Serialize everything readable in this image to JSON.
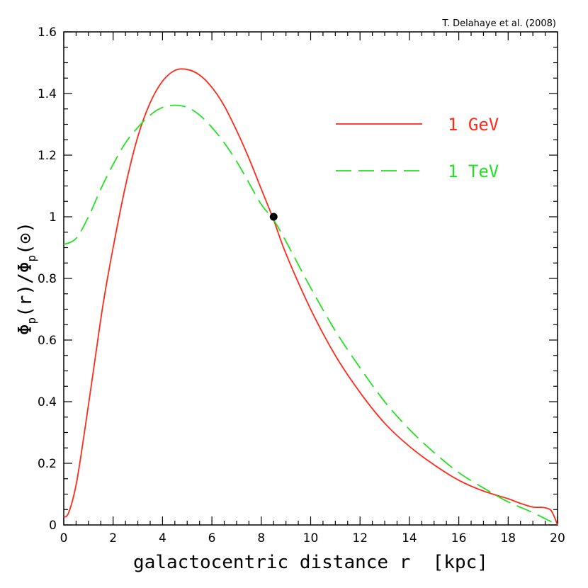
{
  "chart_data": {
    "type": "line",
    "title": "",
    "credit": "T. Delahaye et al. (2008)",
    "xlabel": "galactocentric distance r  [kpc]",
    "ylabel": {
      "base": "Φ",
      "sub1": "p",
      "mid1": "(r)/",
      "base2": "Φ",
      "sub2": "p",
      "mid2": "(⊙)"
    },
    "xlim": [
      0,
      20
    ],
    "ylim": [
      0,
      1.6
    ],
    "x_major_ticks": [
      0,
      2,
      4,
      6,
      8,
      10,
      12,
      14,
      16,
      18,
      20
    ],
    "x_tick_labels": [
      "0",
      "2",
      "4",
      "6",
      "8",
      "10",
      "12",
      "14",
      "16",
      "18",
      "20"
    ],
    "y_major_ticks": [
      0,
      0.2,
      0.4,
      0.6,
      0.8,
      1.0,
      1.2,
      1.4,
      1.6
    ],
    "y_tick_labels": [
      "0",
      "0.2",
      "0.4",
      "0.6",
      "0.8",
      "1",
      "1.2",
      "1.4",
      "1.6"
    ],
    "series": [
      {
        "name": "1 GeV",
        "color": "#ff2a1a",
        "style": "solid",
        "x": [
          0,
          0.2,
          0.5,
          0.8,
          1.2,
          1.6,
          2.0,
          2.5,
          3.0,
          3.5,
          4.0,
          4.5,
          5.0,
          5.5,
          6.0,
          6.5,
          7.0,
          7.5,
          8.0,
          8.5,
          9.0,
          10.0,
          11.0,
          12.0,
          13.0,
          14.0,
          15.0,
          16.0,
          17.0,
          18.0,
          18.5,
          19.0,
          19.4,
          19.7,
          19.85,
          20.0
        ],
        "y": [
          0.025,
          0.04,
          0.13,
          0.28,
          0.5,
          0.72,
          0.9,
          1.1,
          1.26,
          1.37,
          1.44,
          1.475,
          1.478,
          1.46,
          1.42,
          1.36,
          1.28,
          1.19,
          1.09,
          0.99,
          0.88,
          0.7,
          0.55,
          0.43,
          0.33,
          0.255,
          0.195,
          0.145,
          0.11,
          0.085,
          0.07,
          0.058,
          0.057,
          0.05,
          0.03,
          0.0
        ]
      },
      {
        "name": "1 TeV",
        "color": "#22e022",
        "style": "dashed",
        "x": [
          0,
          0.5,
          1.0,
          1.5,
          2.0,
          2.5,
          3.0,
          3.5,
          4.0,
          4.5,
          5.0,
          5.5,
          6.0,
          6.5,
          7.0,
          7.5,
          8.0,
          8.5,
          9.0,
          10.0,
          11.0,
          12.0,
          13.0,
          14.0,
          15.0,
          16.0,
          17.0,
          18.0,
          19.0,
          20.0
        ],
        "y": [
          0.91,
          0.93,
          1.0,
          1.09,
          1.17,
          1.24,
          1.29,
          1.33,
          1.355,
          1.362,
          1.355,
          1.33,
          1.29,
          1.24,
          1.18,
          1.11,
          1.04,
          0.99,
          0.92,
          0.77,
          0.63,
          0.51,
          0.4,
          0.31,
          0.235,
          0.17,
          0.12,
          0.075,
          0.04,
          0.0
        ]
      }
    ],
    "reference_point": {
      "x": 8.5,
      "y": 1.0,
      "color": "#000000"
    },
    "legend": {
      "position": "top-right",
      "entries": [
        "1 GeV",
        "1 TeV"
      ]
    },
    "grid": false
  }
}
